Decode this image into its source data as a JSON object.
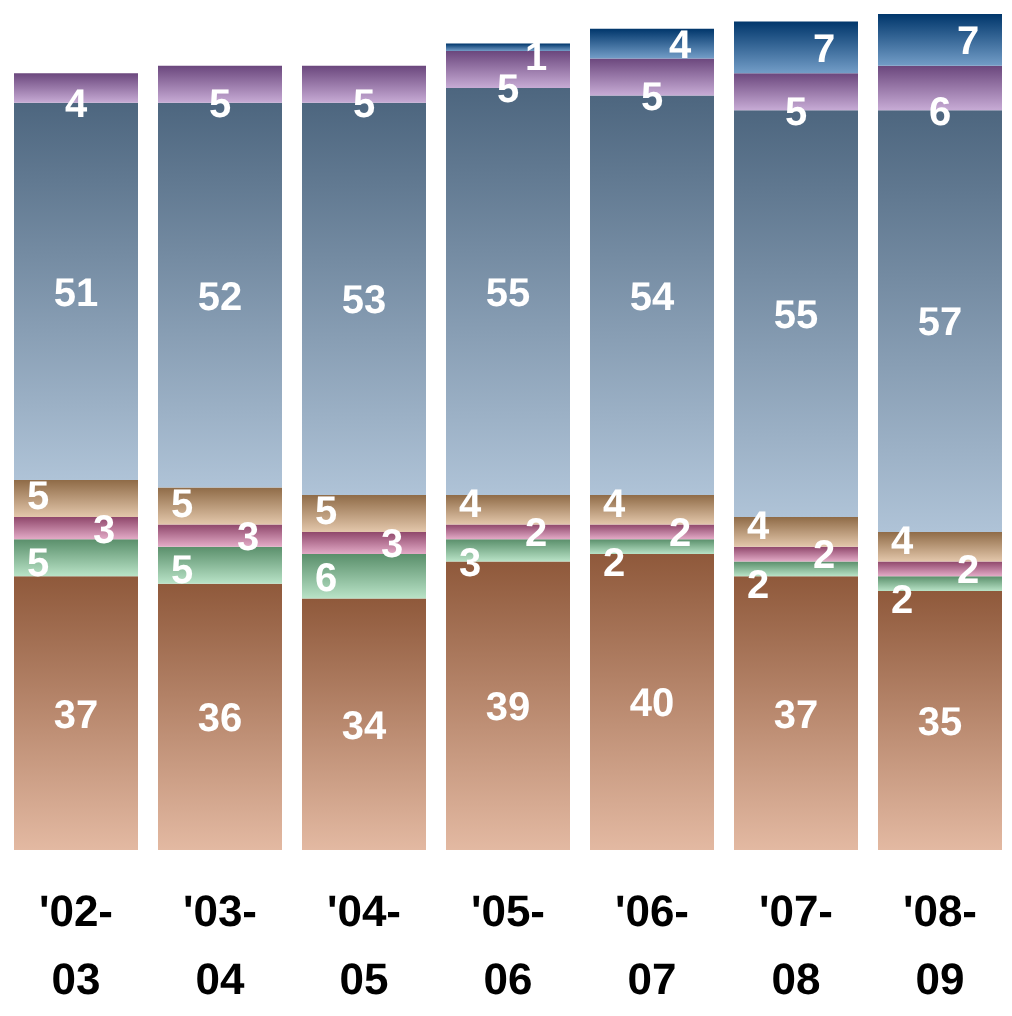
{
  "chart_data": {
    "type": "bar",
    "stacked": true,
    "data_labels": true,
    "categories": [
      "'02-03",
      "'03-04",
      "'04-05",
      "'05-06",
      "'06-07",
      "'07-08",
      "'08-09"
    ],
    "series": [
      {
        "color": "#cc7f55",
        "values": [
          37,
          36,
          34,
          39,
          40,
          37,
          35
        ]
      },
      {
        "color": "#80cc99",
        "values": [
          5,
          5,
          6,
          3,
          2,
          2,
          2
        ]
      },
      {
        "color": "#cc6699",
        "values": [
          3,
          3,
          3,
          2,
          2,
          2,
          2
        ]
      },
      {
        "color": "#cc9966",
        "values": [
          5,
          5,
          5,
          4,
          4,
          4,
          4
        ]
      },
      {
        "color": "#6e91b6",
        "values": [
          51,
          52,
          53,
          55,
          54,
          55,
          57
        ]
      },
      {
        "color": "#9966b3",
        "values": [
          4,
          5,
          5,
          5,
          5,
          5,
          6
        ]
      },
      {
        "color": "#004d99",
        "values": [
          null,
          null,
          null,
          1,
          4,
          7,
          7
        ]
      }
    ]
  }
}
